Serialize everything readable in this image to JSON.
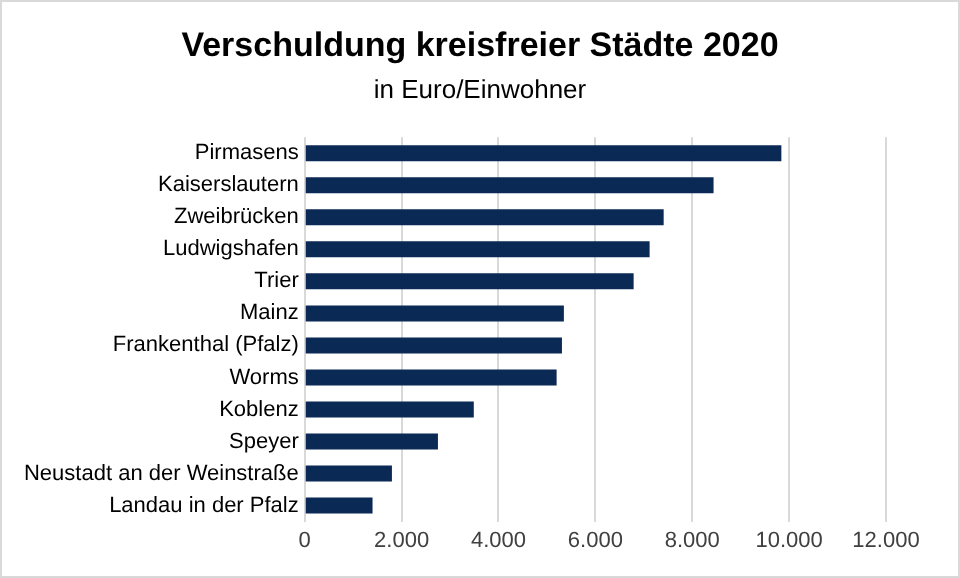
{
  "chart_data": {
    "type": "bar",
    "orientation": "horizontal",
    "title": "Verschuldung kreisfreier Städte 2020",
    "subtitle": "in Euro/Einwohner",
    "categories": [
      "Pirmasens",
      "Kaiserslautern",
      "Zweibrücken",
      "Ludwigshafen",
      "Trier",
      "Mainz",
      "Frankenthal (Pfalz)",
      "Worms",
      "Koblenz",
      "Speyer",
      "Neustadt an der Weinstraße",
      "Landau in der Pfalz"
    ],
    "values": [
      9840,
      8440,
      7410,
      7120,
      6790,
      5350,
      5310,
      5200,
      3490,
      2750,
      1800,
      1400
    ],
    "color": "#0b2955",
    "xlim": [
      0,
      12000
    ],
    "xticks": [
      0,
      {
        "value": 2000,
        "label": "2.000"
      },
      {
        "value": 4000,
        "label": "4.000"
      },
      {
        "value": 6000,
        "label": "6.000"
      },
      {
        "value": 8000,
        "label": "8.000"
      },
      {
        "value": 10000,
        "label": "10.000"
      },
      {
        "value": 12000,
        "label": "12.000"
      }
    ],
    "grid": "x",
    "legend": false
  }
}
